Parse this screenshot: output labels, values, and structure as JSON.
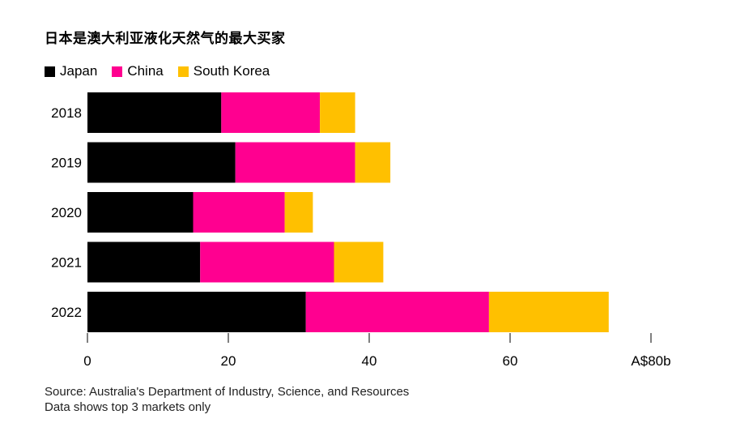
{
  "chart_data": {
    "type": "bar",
    "orientation": "horizontal",
    "stacked": true,
    "title": "日本是澳大利亚液化天然气的最大买家",
    "categories": [
      "2018",
      "2019",
      "2020",
      "2021",
      "2022"
    ],
    "series": [
      {
        "name": "Japan",
        "color": "#000000",
        "values": [
          19,
          21,
          15,
          16,
          31
        ]
      },
      {
        "name": "China",
        "color": "#ff0090",
        "values": [
          14,
          17,
          13,
          19,
          26
        ]
      },
      {
        "name": "South Korea",
        "color": "#ffc000",
        "values": [
          5,
          5,
          4,
          7,
          17
        ]
      }
    ],
    "xlim": [
      0,
      80
    ],
    "xticks": [
      {
        "value": 0,
        "label": "0"
      },
      {
        "value": 20,
        "label": "20"
      },
      {
        "value": 40,
        "label": "40"
      },
      {
        "value": 60,
        "label": "60"
      },
      {
        "value": 80,
        "label": "A$80b"
      }
    ],
    "legend_position": "top-left",
    "grid": false
  },
  "source": {
    "line1": "Source: Australia's Department of Industry, Science, and Resources",
    "line2": "Data shows top 3 markets only"
  }
}
